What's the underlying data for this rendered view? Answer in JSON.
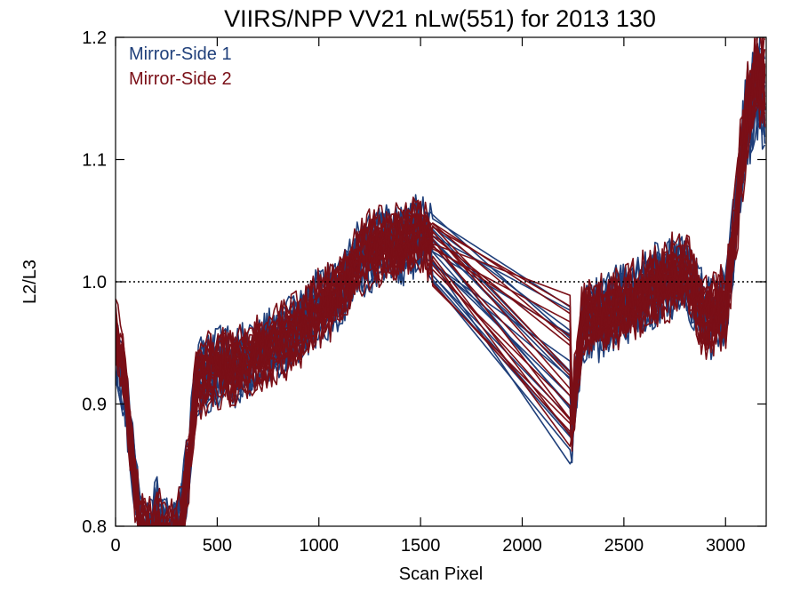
{
  "chart_data": {
    "type": "line",
    "title": "VIIRS/NPP VV21 nLw(551) for 2013 130",
    "xlabel": "Scan Pixel",
    "ylabel": "L2/L3",
    "xlim": [
      0,
      3200
    ],
    "ylim": [
      0.8,
      1.2
    ],
    "x_ticks": [
      0,
      500,
      1000,
      1500,
      2000,
      2500,
      3000
    ],
    "x_tick_labels": [
      "0",
      "500",
      "1000",
      "1500",
      "2000",
      "2500",
      "3000"
    ],
    "y_ticks": [
      0.8,
      0.9,
      1.0,
      1.1,
      1.2
    ],
    "y_tick_labels": [
      "0.8",
      "0.9",
      "1.0",
      "1.1",
      "1.2"
    ],
    "reference_line": {
      "y": 1.0,
      "style": "dotted",
      "color": "#000000"
    },
    "legend_position": "top-left",
    "series": [
      {
        "name": "Mirror-Side 1",
        "color": "#1f3f7a",
        "envelope": [
          [
            0,
            0.95
          ],
          [
            40,
            0.92
          ],
          [
            80,
            0.86
          ],
          [
            120,
            0.8
          ],
          [
            160,
            0.79
          ],
          [
            200,
            0.81
          ],
          [
            240,
            0.79
          ],
          [
            280,
            0.79
          ],
          [
            320,
            0.81
          ],
          [
            360,
            0.85
          ],
          [
            400,
            0.92
          ],
          [
            500,
            0.93
          ],
          [
            600,
            0.93
          ],
          [
            700,
            0.94
          ],
          [
            800,
            0.95
          ],
          [
            900,
            0.96
          ],
          [
            1000,
            0.98
          ],
          [
            1100,
            0.99
          ],
          [
            1200,
            1.02
          ],
          [
            1300,
            1.03
          ],
          [
            1400,
            1.03
          ],
          [
            1500,
            1.04
          ],
          [
            1550,
            1.03
          ],
          [
            2240,
            0.88
          ],
          [
            2300,
            0.97
          ],
          [
            2400,
            0.97
          ],
          [
            2500,
            0.98
          ],
          [
            2600,
            0.99
          ],
          [
            2700,
            1.0
          ],
          [
            2800,
            1.01
          ],
          [
            2900,
            0.97
          ],
          [
            3000,
            0.98
          ],
          [
            3050,
            1.05
          ],
          [
            3100,
            1.13
          ],
          [
            3150,
            1.16
          ],
          [
            3200,
            1.15
          ]
        ]
      },
      {
        "name": "Mirror-Side 2",
        "color": "#7a0f17",
        "envelope": [
          [
            0,
            0.96
          ],
          [
            40,
            0.93
          ],
          [
            80,
            0.86
          ],
          [
            120,
            0.8
          ],
          [
            160,
            0.79
          ],
          [
            200,
            0.8
          ],
          [
            240,
            0.79
          ],
          [
            280,
            0.79
          ],
          [
            320,
            0.8
          ],
          [
            360,
            0.85
          ],
          [
            400,
            0.92
          ],
          [
            500,
            0.93
          ],
          [
            600,
            0.93
          ],
          [
            700,
            0.94
          ],
          [
            800,
            0.95
          ],
          [
            900,
            0.96
          ],
          [
            1000,
            0.98
          ],
          [
            1100,
            0.99
          ],
          [
            1200,
            1.02
          ],
          [
            1300,
            1.03
          ],
          [
            1400,
            1.03
          ],
          [
            1500,
            1.04
          ],
          [
            1550,
            1.03
          ],
          [
            2240,
            0.88
          ],
          [
            2300,
            0.97
          ],
          [
            2400,
            0.97
          ],
          [
            2500,
            0.98
          ],
          [
            2600,
            0.99
          ],
          [
            2700,
            1.0
          ],
          [
            2800,
            1.01
          ],
          [
            2900,
            0.97
          ],
          [
            3000,
            0.98
          ],
          [
            3050,
            1.05
          ],
          [
            3100,
            1.13
          ],
          [
            3150,
            1.17
          ],
          [
            3200,
            1.16
          ]
        ]
      }
    ],
    "traces_per_series": 18
  }
}
